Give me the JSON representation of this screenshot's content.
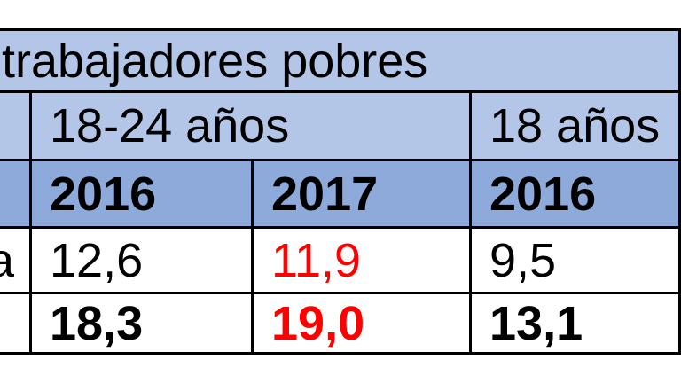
{
  "table": {
    "title": "trabajadores pobres",
    "col_groups": [
      {
        "label": "18-24 años"
      },
      {
        "label": "18 años"
      }
    ],
    "year_headers": [
      "2016",
      "2017",
      "2016"
    ],
    "rows": [
      {
        "label": "a",
        "values": [
          "12,6",
          "11,9",
          "9,5"
        ]
      },
      {
        "label": "",
        "values": [
          "18,3",
          "19,0",
          "13,1"
        ]
      }
    ],
    "colors": {
      "header_light": "#b4c6e7",
      "header_medium": "#8eaadb",
      "highlight_red": "#ff0000",
      "border": "#000000",
      "text": "#000000",
      "background": "#ffffff"
    }
  },
  "chart_data": {
    "type": "table",
    "title": "trabajadores pobres",
    "column_groups": [
      "18-24 años",
      "18 años"
    ],
    "columns": [
      "2016",
      "2017",
      "2016"
    ],
    "rows": [
      {
        "label": "a",
        "values": [
          12.6,
          11.9,
          9.5
        ]
      },
      {
        "label": "",
        "values": [
          18.3,
          19.0,
          13.1
        ]
      }
    ],
    "red_column": "2017"
  }
}
